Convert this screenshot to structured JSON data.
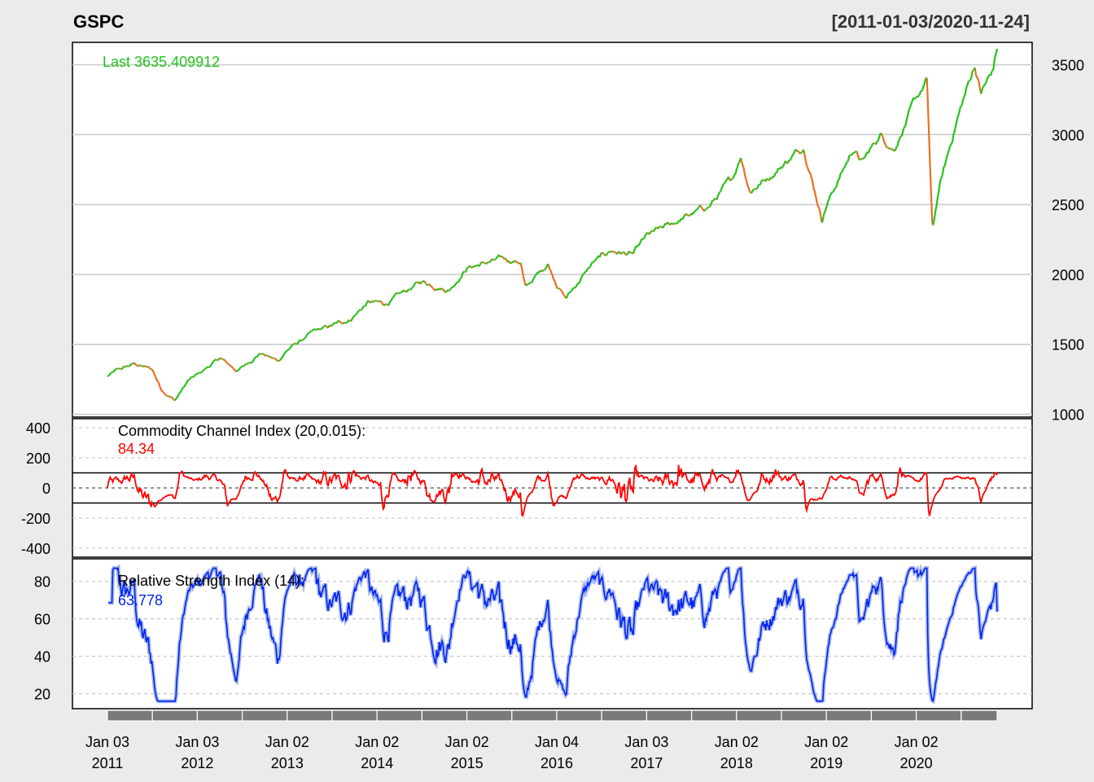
{
  "chart_data": {
    "type": "line",
    "symbol": "GSPC",
    "date_range": "[2011-01-03/2020-11-24]",
    "colors": {
      "background": "#ebebeb",
      "panel": "#ffffff",
      "price_up": "#22c21d",
      "price_down": "#e8701a",
      "cci": "#ff0000",
      "rsi": "#0022ee",
      "rsi_fill": "#aabbee",
      "grid": "#c8c8c8",
      "axis_band": "#7a7a7a"
    },
    "price": {
      "label": "Last 3635.409912",
      "ylim": [
        980,
        3660
      ],
      "yticks": [
        1000,
        1500,
        2000,
        2500,
        3000,
        3500
      ],
      "anchors": [
        [
          2011.0,
          1270
        ],
        [
          2011.1,
          1310
        ],
        [
          2011.3,
          1360
        ],
        [
          2011.5,
          1320
        ],
        [
          2011.6,
          1180
        ],
        [
          2011.75,
          1100
        ],
        [
          2011.9,
          1240
        ],
        [
          2012.0,
          1280
        ],
        [
          2012.25,
          1400
        ],
        [
          2012.45,
          1310
        ],
        [
          2012.7,
          1440
        ],
        [
          2012.9,
          1380
        ],
        [
          2013.0,
          1460
        ],
        [
          2013.3,
          1590
        ],
        [
          2013.45,
          1620
        ],
        [
          2013.7,
          1680
        ],
        [
          2013.9,
          1800
        ],
        [
          2014.1,
          1790
        ],
        [
          2014.5,
          1950
        ],
        [
          2014.8,
          1890
        ],
        [
          2015.0,
          2050
        ],
        [
          2015.4,
          2110
        ],
        [
          2015.6,
          2090
        ],
        [
          2015.65,
          1900
        ],
        [
          2015.9,
          2080
        ],
        [
          2016.0,
          1940
        ],
        [
          2016.1,
          1830
        ],
        [
          2016.4,
          2080
        ],
        [
          2016.6,
          2170
        ],
        [
          2016.85,
          2140
        ],
        [
          2017.0,
          2270
        ],
        [
          2017.4,
          2400
        ],
        [
          2017.7,
          2490
        ],
        [
          2017.95,
          2680
        ],
        [
          2018.05,
          2850
        ],
        [
          2018.15,
          2600
        ],
        [
          2018.4,
          2720
        ],
        [
          2018.75,
          2920
        ],
        [
          2018.95,
          2400
        ],
        [
          2019.0,
          2500
        ],
        [
          2019.3,
          2900
        ],
        [
          2019.4,
          2800
        ],
        [
          2019.6,
          3000
        ],
        [
          2019.75,
          2900
        ],
        [
          2020.0,
          3250
        ],
        [
          2020.12,
          3380
        ],
        [
          2020.18,
          2300
        ],
        [
          2020.25,
          2600
        ],
        [
          2020.45,
          3100
        ],
        [
          2020.65,
          3500
        ],
        [
          2020.72,
          3300
        ],
        [
          2020.85,
          3450
        ],
        [
          2020.9,
          3620
        ]
      ]
    },
    "cci": {
      "title": "Commodity Channel Index (20,0.015):",
      "last": "84.34",
      "ylim": [
        -460,
        460
      ],
      "yticks": [
        -400,
        -200,
        0,
        200,
        400
      ],
      "lines": [
        100,
        -100
      ]
    },
    "rsi": {
      "title": "Relative Strength Index (14):",
      "last": "63.778",
      "ylim": [
        12,
        92
      ],
      "yticks": [
        20,
        40,
        60,
        80
      ]
    },
    "x_axis": {
      "start": 2011.0,
      "end": 2020.9,
      "ticks": [
        {
          "t": 2011.0,
          "day": "Jan 03",
          "year": "2011"
        },
        {
          "t": 2012.0,
          "day": "Jan 03",
          "year": "2012"
        },
        {
          "t": 2013.0,
          "day": "Jan 02",
          "year": "2013"
        },
        {
          "t": 2014.0,
          "day": "Jan 02",
          "year": "2014"
        },
        {
          "t": 2015.0,
          "day": "Jan 02",
          "year": "2015"
        },
        {
          "t": 2016.0,
          "day": "Jan 04",
          "year": "2016"
        },
        {
          "t": 2017.0,
          "day": "Jan 03",
          "year": "2017"
        },
        {
          "t": 2018.0,
          "day": "Jan 02",
          "year": "2018"
        },
        {
          "t": 2019.0,
          "day": "Jan 02",
          "year": "2019"
        },
        {
          "t": 2020.0,
          "day": "Jan 02",
          "year": "2020"
        }
      ]
    }
  }
}
